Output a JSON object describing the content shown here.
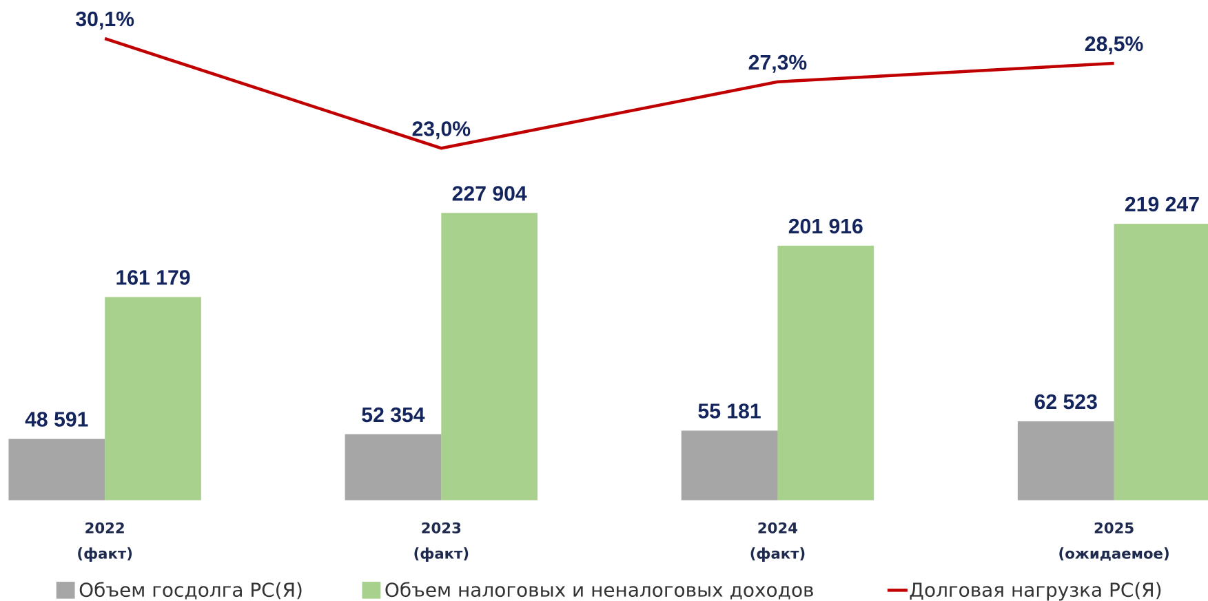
{
  "chart_data": {
    "type": "bar",
    "categories": [
      [
        "2022",
        "(факт)"
      ],
      [
        "2023",
        "(факт)"
      ],
      [
        "2024",
        "(факт)"
      ],
      [
        "2025",
        "(ожидаемое)"
      ]
    ],
    "series": [
      {
        "name": "Объем госдолга РС(Я)",
        "color": "#a6a6a6",
        "type": "bar",
        "values": [
          48591,
          52354,
          55181,
          62523
        ],
        "value_labels": [
          "48 591",
          "52 354",
          "55 181",
          "62 523"
        ]
      },
      {
        "name": "Объем налоговых и неналоговых доходов",
        "color": "#a9d18e",
        "type": "bar",
        "values": [
          161179,
          227904,
          201916,
          219247
        ],
        "value_labels": [
          "161 179",
          "227 904",
          "201 916",
          "219 247"
        ]
      },
      {
        "name": "Долговая нагрузка РС(Я)",
        "color": "#c00000",
        "type": "line",
        "axis": "y2",
        "values": [
          30.1,
          23.0,
          27.3,
          28.5
        ],
        "value_labels": [
          "30,1%",
          "23,0%",
          "27,3%",
          "28,5%"
        ]
      }
    ],
    "ylim": [
      0,
      396800
    ],
    "y2lim": [
      0,
      32.5
    ],
    "legend": "bottom"
  }
}
